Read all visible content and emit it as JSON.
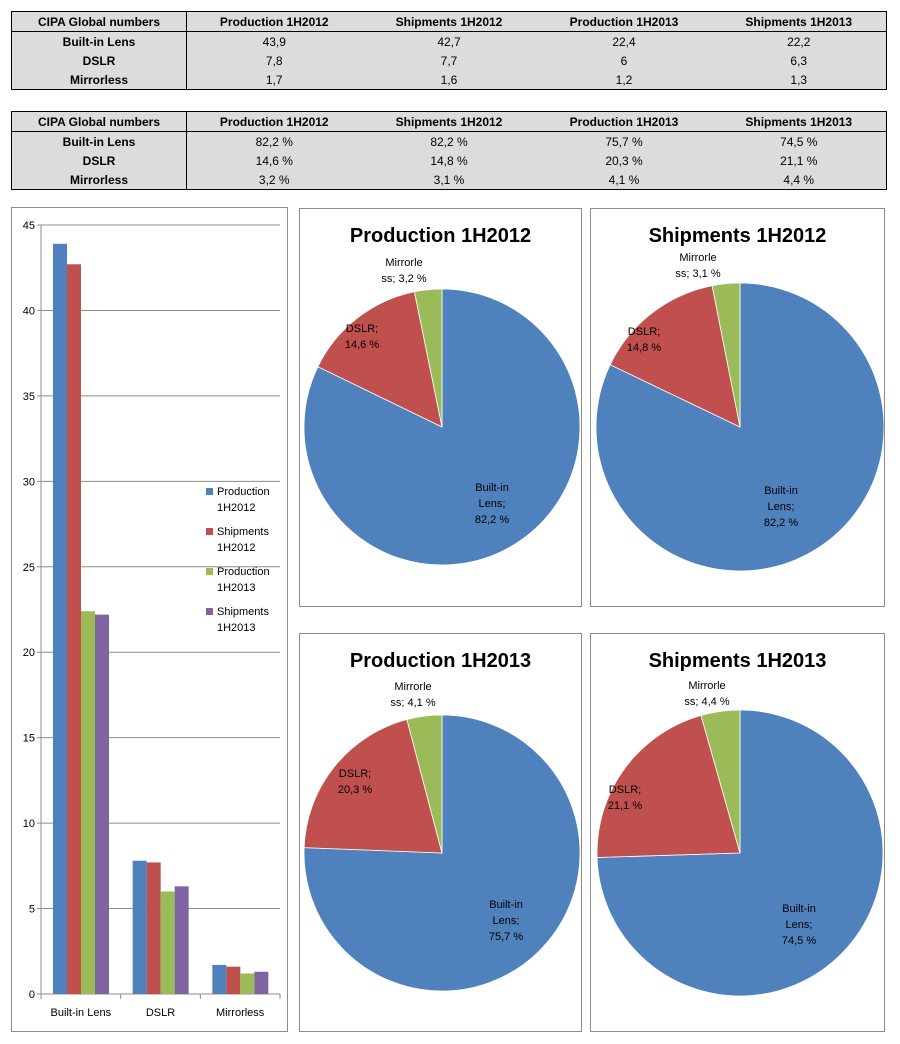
{
  "table_counts": {
    "header": [
      "CIPA Global numbers",
      "Production 1H2012",
      "Shipments 1H2012",
      "Production 1H2013",
      "Shipments 1H2013"
    ],
    "rows": [
      {
        "label": "Built-in Lens",
        "cells": [
          "43,9",
          "42,7",
          "22,4",
          "22,2"
        ]
      },
      {
        "label": "DSLR",
        "cells": [
          "7,8",
          "7,7",
          "6",
          "6,3"
        ]
      },
      {
        "label": "Mirrorless",
        "cells": [
          "1,7",
          "1,6",
          "1,2",
          "1,3"
        ]
      }
    ]
  },
  "table_shares": {
    "header": [
      "CIPA Global numbers",
      "Production 1H2012",
      "Shipments 1H2012",
      "Production 1H2013",
      "Shipments 1H2013"
    ],
    "rows": [
      {
        "label": "Built-in Lens",
        "cells": [
          "82,2 %",
          "82,2 %",
          "75,7 %",
          "74,5 %"
        ]
      },
      {
        "label": "DSLR",
        "cells": [
          "14,6 %",
          "14,8 %",
          "20,3 %",
          "21,1 %"
        ]
      },
      {
        "label": "Mirrorless",
        "cells": [
          "3,2 %",
          "3,1 %",
          "4,1 %",
          "4,4 %"
        ]
      }
    ]
  },
  "chart_data": [
    {
      "type": "bar",
      "title": "",
      "xlabel": "",
      "ylabel": "",
      "categories": [
        "Built-in Lens",
        "DSLR",
        "Mirrorless"
      ],
      "series": [
        {
          "name": "Production 1H2012",
          "color": "#4f81bd",
          "values": [
            43.9,
            7.8,
            1.7
          ]
        },
        {
          "name": "Shipments 1H2012",
          "color": "#c0504d",
          "values": [
            42.7,
            7.7,
            1.6
          ]
        },
        {
          "name": "Production 1H2013",
          "color": "#9bbb59",
          "values": [
            22.4,
            6,
            1.2
          ]
        },
        {
          "name": "Shipments 1H2013",
          "color": "#8064a2",
          "values": [
            22.2,
            6.3,
            1.3
          ]
        }
      ],
      "ylim": [
        0,
        45
      ],
      "yticks": [
        0,
        5,
        10,
        15,
        20,
        25,
        30,
        35,
        40,
        45
      ],
      "grid": true,
      "legend": "right",
      "legend_lines": [
        [
          "Production",
          "1H2012"
        ],
        [
          "Shipments",
          "1H2012"
        ],
        [
          "Production",
          "1H2013"
        ],
        [
          "Shipments",
          "1H2013"
        ]
      ]
    },
    {
      "type": "pie",
      "title": "Production 1H2012",
      "slices": [
        {
          "name": "Built-in Lens",
          "value": 82.2,
          "color": "#4f81bd",
          "label_lines": [
            "Built-in",
            "Lens;",
            "82,2 %"
          ]
        },
        {
          "name": "DSLR",
          "value": 14.6,
          "color": "#c0504d",
          "label_lines": [
            "DSLR;",
            "14,6 %"
          ]
        },
        {
          "name": "Mirrorless",
          "value": 3.2,
          "color": "#9bbb59",
          "label_lines": [
            "Mirrorle",
            "ss; 3,2 %"
          ]
        }
      ]
    },
    {
      "type": "pie",
      "title": "Shipments 1H2012",
      "slices": [
        {
          "name": "Built-in Lens",
          "value": 82.2,
          "color": "#4f81bd",
          "label_lines": [
            "Built-in",
            "Lens;",
            "82,2 %"
          ]
        },
        {
          "name": "DSLR",
          "value": 14.8,
          "color": "#c0504d",
          "label_lines": [
            "DSLR;",
            "14,8 %"
          ]
        },
        {
          "name": "Mirrorless",
          "value": 3.1,
          "color": "#9bbb59",
          "label_lines": [
            "Mirrorle",
            "ss; 3,1 %"
          ]
        }
      ]
    },
    {
      "type": "pie",
      "title": "Production 1H2013",
      "slices": [
        {
          "name": "Built-in Lens",
          "value": 75.7,
          "color": "#4f81bd",
          "label_lines": [
            "Built-in",
            "Lens;",
            "75,7 %"
          ]
        },
        {
          "name": "DSLR",
          "value": 20.3,
          "color": "#c0504d",
          "label_lines": [
            "DSLR;",
            "20,3 %"
          ]
        },
        {
          "name": "Mirrorless",
          "value": 4.1,
          "color": "#9bbb59",
          "label_lines": [
            "Mirrorle",
            "ss; 4,1 %"
          ]
        }
      ]
    },
    {
      "type": "pie",
      "title": "Shipments 1H2013",
      "slices": [
        {
          "name": "Built-in Lens",
          "value": 74.5,
          "color": "#4f81bd",
          "label_lines": [
            "Built-in",
            "Lens;",
            "74,5 %"
          ]
        },
        {
          "name": "DSLR",
          "value": 21.1,
          "color": "#c0504d",
          "label_lines": [
            "DSLR;",
            "21,1 %"
          ]
        },
        {
          "name": "Mirrorless",
          "value": 4.4,
          "color": "#9bbb59",
          "label_lines": [
            "Mirrorle",
            "ss; 4,4 %"
          ]
        }
      ]
    }
  ]
}
